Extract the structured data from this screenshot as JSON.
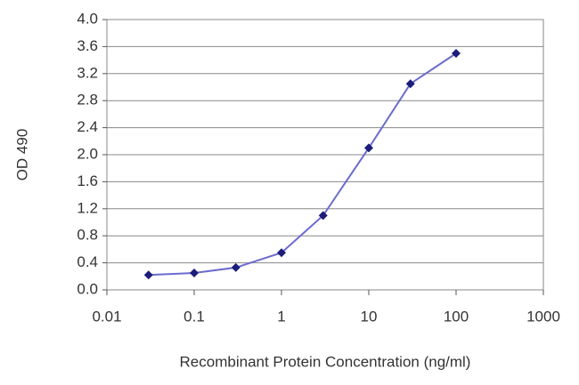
{
  "chart_data": {
    "type": "line",
    "x_label": "Recombinant Protein Concentration (ng/ml)",
    "y_label": "OD 490",
    "x": [
      0.03,
      0.1,
      0.3,
      1,
      3,
      10,
      30,
      100
    ],
    "values": [
      0.22,
      0.25,
      0.33,
      0.55,
      1.1,
      2.1,
      3.05,
      3.5
    ],
    "line_color": "#6b6bcf",
    "marker_color": "#1c1c7a",
    "x_log": true,
    "xlim": [
      0.01,
      1000
    ],
    "xticks": [
      0.01,
      0.1,
      1,
      10,
      100,
      1000
    ],
    "ylim": [
      0,
      4
    ],
    "yticks": [
      {
        "value": 0,
        "label": "0.0"
      },
      0.4,
      0.8,
      1.2,
      1.6,
      {
        "value": 2,
        "label": "2.0"
      },
      2.4,
      2.8,
      3.2,
      3.6,
      {
        "value": 4,
        "label": "4.0"
      }
    ],
    "grid": true
  }
}
